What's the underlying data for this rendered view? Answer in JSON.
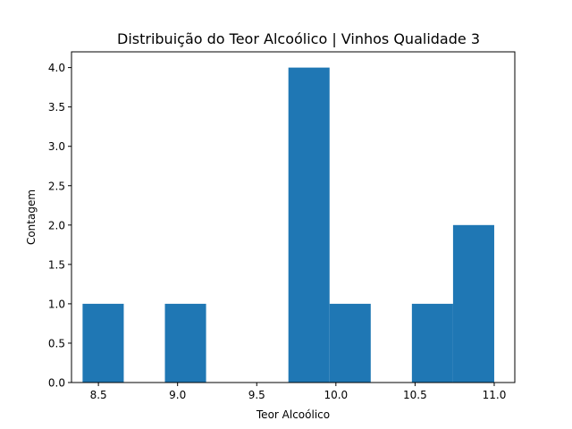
{
  "chart_data": {
    "type": "bar",
    "title": "Distribuição do Teor Alcoólico | Vinhos Qualidade 3",
    "xlabel": "Teor Alcoólico",
    "ylabel": "Contagem",
    "xlim": [
      8.33,
      11.13
    ],
    "ylim": [
      0,
      4.2
    ],
    "x_ticks": [
      8.5,
      9.0,
      9.5,
      10.0,
      10.5,
      11.0
    ],
    "x_tick_labels": [
      "8.5",
      "9.0",
      "9.5",
      "10.0",
      "10.5",
      "11.0"
    ],
    "y_ticks": [
      0,
      0.5,
      1.0,
      1.5,
      2.0,
      2.5,
      3.0,
      3.5,
      4.0
    ],
    "y_tick_labels": [
      "0.0",
      "0.5",
      "1.0",
      "1.5",
      "2.0",
      "2.5",
      "3.0",
      "3.5",
      "4.0"
    ],
    "bin_edges": [
      8.4,
      8.66,
      8.92,
      9.18,
      9.44,
      9.7,
      9.96,
      10.22,
      10.48,
      10.74,
      11.0
    ],
    "counts": [
      1,
      0,
      1,
      0,
      0,
      4,
      1,
      0,
      1,
      2
    ],
    "bar_color": "#1f77b4",
    "grid": false
  }
}
